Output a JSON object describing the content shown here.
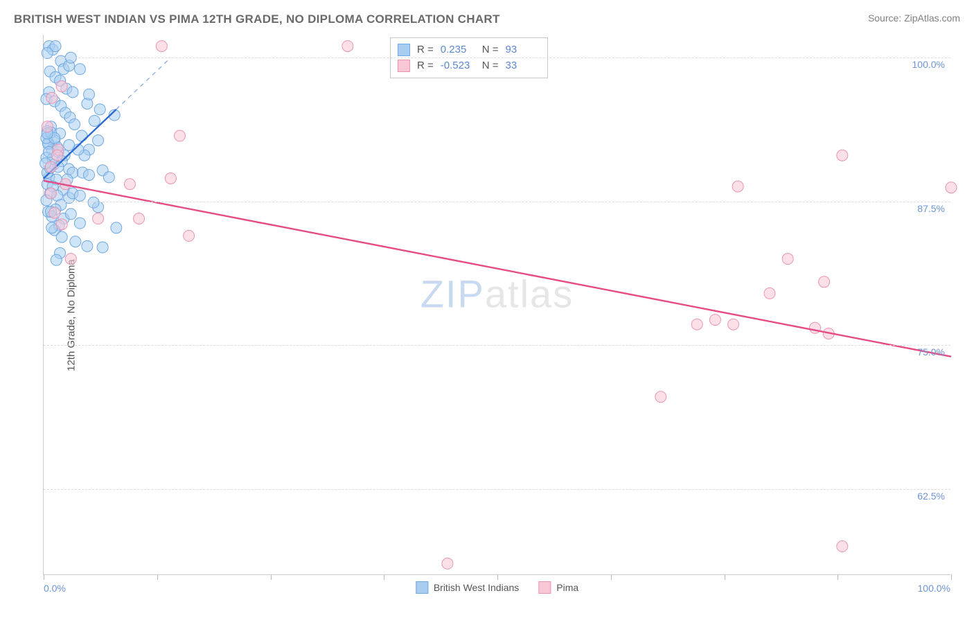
{
  "header": {
    "title": "BRITISH WEST INDIAN VS PIMA 12TH GRADE, NO DIPLOMA CORRELATION CHART",
    "source_prefix": "Source: ",
    "source_name": "ZipAtlas.com"
  },
  "watermark": {
    "zip": "ZIP",
    "atlas": "atlas"
  },
  "chart": {
    "type": "scatter",
    "ylabel": "12th Grade, No Diploma",
    "xlim": [
      0,
      100
    ],
    "ylim": [
      55,
      102
    ],
    "background_color": "#ffffff",
    "grid_color": "#dcdcdc",
    "axis_color": "#cccccc",
    "series": [
      {
        "name": "British West Indians",
        "color_fill": "#a9cdf0",
        "color_stroke": "#6fa8e2",
        "marker_r": 8,
        "fill_opacity": 0.55,
        "points": [
          [
            0.6,
            101.0
          ],
          [
            1.0,
            100.7
          ],
          [
            1.3,
            101.0
          ],
          [
            0.4,
            100.4
          ],
          [
            1.9,
            99.7
          ],
          [
            2.2,
            99.0
          ],
          [
            2.8,
            99.3
          ],
          [
            0.7,
            98.8
          ],
          [
            1.3,
            98.3
          ],
          [
            1.8,
            98.0
          ],
          [
            2.5,
            97.3
          ],
          [
            3.2,
            97.0
          ],
          [
            0.6,
            97.0
          ],
          [
            0.3,
            96.4
          ],
          [
            1.2,
            96.2
          ],
          [
            1.9,
            95.8
          ],
          [
            2.4,
            95.2
          ],
          [
            2.9,
            94.8
          ],
          [
            3.4,
            94.2
          ],
          [
            0.8,
            94.0
          ],
          [
            0.4,
            93.6
          ],
          [
            4.2,
            93.2
          ],
          [
            4.8,
            96.0
          ],
          [
            5.6,
            94.5
          ],
          [
            1.8,
            93.4
          ],
          [
            1.2,
            92.8
          ],
          [
            0.5,
            92.6
          ],
          [
            0.9,
            92.0
          ],
          [
            1.6,
            91.8
          ],
          [
            2.3,
            91.5
          ],
          [
            0.3,
            91.3
          ],
          [
            2.0,
            91.0
          ],
          [
            1.1,
            90.7
          ],
          [
            1.6,
            90.5
          ],
          [
            2.8,
            90.3
          ],
          [
            3.2,
            90.0
          ],
          [
            4.3,
            90.0
          ],
          [
            6.5,
            90.2
          ],
          [
            5.0,
            89.8
          ],
          [
            7.2,
            89.6
          ],
          [
            0.6,
            89.6
          ],
          [
            1.4,
            89.4
          ],
          [
            0.4,
            89.0
          ],
          [
            1.0,
            88.8
          ],
          [
            2.2,
            88.5
          ],
          [
            0.7,
            88.2
          ],
          [
            1.5,
            88.0
          ],
          [
            2.8,
            87.8
          ],
          [
            0.3,
            87.6
          ],
          [
            3.2,
            88.2
          ],
          [
            4.0,
            88.0
          ],
          [
            1.9,
            87.2
          ],
          [
            1.3,
            86.8
          ],
          [
            0.5,
            86.6
          ],
          [
            0.9,
            86.2
          ],
          [
            6.0,
            87.0
          ],
          [
            2.2,
            86.0
          ],
          [
            1.7,
            85.4
          ],
          [
            1.2,
            85.0
          ],
          [
            0.8,
            86.6
          ],
          [
            8.0,
            85.2
          ],
          [
            2.0,
            84.4
          ],
          [
            3.5,
            84.0
          ],
          [
            4.8,
            83.6
          ],
          [
            1.8,
            83.0
          ],
          [
            1.4,
            82.4
          ],
          [
            6.5,
            83.5
          ],
          [
            0.9,
            85.2
          ],
          [
            2.6,
            89.4
          ],
          [
            3.0,
            86.4
          ],
          [
            4.0,
            85.6
          ],
          [
            5.5,
            87.4
          ],
          [
            5.0,
            92.0
          ],
          [
            6.0,
            92.8
          ],
          [
            4.5,
            91.5
          ],
          [
            3.8,
            92.0
          ],
          [
            2.8,
            92.4
          ],
          [
            0.4,
            90.0
          ],
          [
            0.7,
            90.4
          ],
          [
            1.0,
            91.2
          ],
          [
            1.5,
            92.2
          ],
          [
            0.5,
            92.5
          ],
          [
            0.3,
            93.0
          ],
          [
            0.8,
            93.5
          ],
          [
            1.2,
            93.0
          ],
          [
            0.4,
            93.4
          ],
          [
            0.6,
            91.8
          ],
          [
            0.2,
            90.8
          ],
          [
            7.8,
            95.0
          ],
          [
            6.2,
            95.5
          ],
          [
            5.0,
            96.8
          ],
          [
            4.0,
            99.0
          ],
          [
            3.0,
            100.0
          ]
        ],
        "trend": {
          "x1": 0,
          "y1": 89.5,
          "x2": 8,
          "y2": 95.5,
          "color": "#2c6bd1",
          "width": 2.4
        },
        "trend_dash": {
          "x1": 8,
          "y1": 95.5,
          "x2": 14,
          "y2": 100,
          "color": "#7ba6e0",
          "width": 1.2
        }
      },
      {
        "name": "Pima",
        "color_fill": "#f7c7d6",
        "color_stroke": "#ea94b2",
        "marker_r": 8,
        "fill_opacity": 0.55,
        "points": [
          [
            13.0,
            101.0
          ],
          [
            33.5,
            101.0
          ],
          [
            2.0,
            97.5
          ],
          [
            15.0,
            93.2
          ],
          [
            1.6,
            92.0
          ],
          [
            0.8,
            90.5
          ],
          [
            88.0,
            91.5
          ],
          [
            100.0,
            88.7
          ],
          [
            14.0,
            89.5
          ],
          [
            2.4,
            89.0
          ],
          [
            9.5,
            89.0
          ],
          [
            76.5,
            88.8
          ],
          [
            6.0,
            86.0
          ],
          [
            10.5,
            86.0
          ],
          [
            16.0,
            84.5
          ],
          [
            3.0,
            82.5
          ],
          [
            82.0,
            82.5
          ],
          [
            86.0,
            80.5
          ],
          [
            80.0,
            79.5
          ],
          [
            74.0,
            77.2
          ],
          [
            72.0,
            76.8
          ],
          [
            76.0,
            76.8
          ],
          [
            85.0,
            76.5
          ],
          [
            86.5,
            76.0
          ],
          [
            68.0,
            70.5
          ],
          [
            1.2,
            86.5
          ],
          [
            0.8,
            88.2
          ],
          [
            2.0,
            85.5
          ],
          [
            44.5,
            56.0
          ],
          [
            1.5,
            91.5
          ],
          [
            0.4,
            94.0
          ],
          [
            0.9,
            96.5
          ],
          [
            88.0,
            57.5
          ]
        ],
        "trend": {
          "x1": 0,
          "y1": 89.3,
          "x2": 100,
          "y2": 74.0,
          "color": "#e64b86",
          "width": 2.4
        }
      }
    ],
    "xticks": [
      0,
      12.5,
      25,
      37.5,
      50,
      62.5,
      75,
      87.5,
      100
    ],
    "xtick_labels": {
      "left": "0.0%",
      "right": "100.0%"
    },
    "yticks": [
      {
        "v": 100.0,
        "label": "100.0%"
      },
      {
        "v": 87.5,
        "label": "87.5%"
      },
      {
        "v": 75.0,
        "label": "75.0%"
      },
      {
        "v": 62.5,
        "label": "62.5%"
      }
    ]
  },
  "stats": {
    "rows": [
      {
        "sw_fill": "#a9cdf0",
        "sw_stroke": "#6fa8e2",
        "r_label": "R =",
        "r_value": "0.235",
        "n_label": "N =",
        "n_value": "93"
      },
      {
        "sw_fill": "#f7c7d6",
        "sw_stroke": "#ea94b2",
        "r_label": "R =",
        "r_value": "-0.523",
        "n_label": "N =",
        "n_value": "33"
      }
    ]
  },
  "legend": {
    "items": [
      {
        "sw_fill": "#a9cdf0",
        "sw_stroke": "#6fa8e2",
        "label": "British West Indians"
      },
      {
        "sw_fill": "#f7c7d6",
        "sw_stroke": "#ea94b2",
        "label": "Pima"
      }
    ]
  }
}
